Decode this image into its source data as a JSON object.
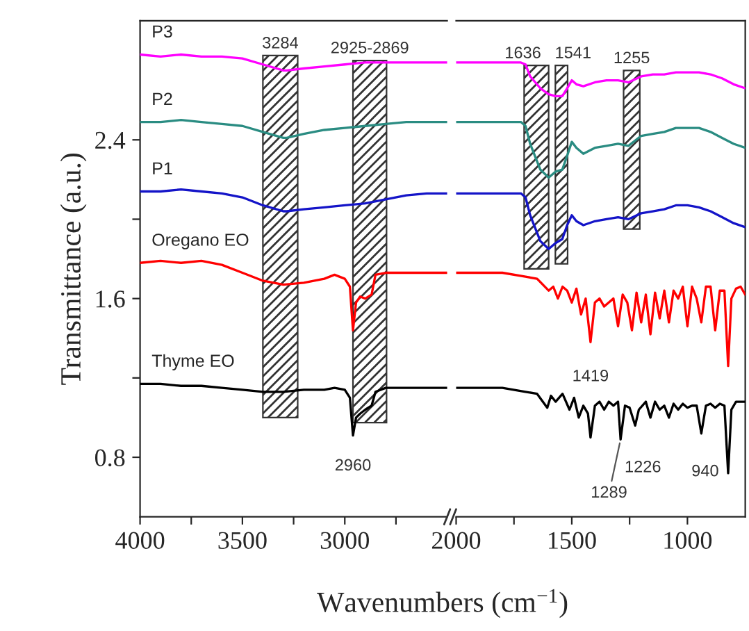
{
  "chart_data": [
    {
      "type": "line",
      "ylabel": "Transmittance (a.u.)",
      "xlabel": "Wavenumbers (cm$^{−1}$)",
      "xlim": [
        4000,
        2500
      ],
      "xticks": [
        4000,
        {
          "value": 3750,
          "label": null
        },
        3500,
        {
          "value": 3250,
          "label": null
        },
        3000,
        {
          "value": 2750,
          "label": null
        }
      ],
      "ylim": [
        0.5,
        3.0
      ],
      "yticks": [
        0.8,
        {
          "value": 1.2,
          "label": null
        },
        1.6,
        {
          "value": 2.0,
          "label": null
        },
        2.4
      ],
      "series": [
        {
          "name": "P3",
          "color": "#ff00ff",
          "x": [
            4000,
            3900,
            3800,
            3700,
            3600,
            3500,
            3400,
            3300,
            3284,
            3200,
            3100,
            3000,
            2900,
            2800,
            2700,
            2600,
            2500
          ],
          "values": [
            2.83,
            2.82,
            2.83,
            2.82,
            2.82,
            2.81,
            2.78,
            2.75,
            2.75,
            2.76,
            2.77,
            2.78,
            2.79,
            2.79,
            2.79,
            2.79,
            2.79
          ]
        },
        {
          "name": "P2",
          "color": "#2a8c82",
          "x": [
            4000,
            3900,
            3800,
            3700,
            3600,
            3500,
            3400,
            3300,
            3284,
            3200,
            3100,
            3000,
            2900,
            2800,
            2700,
            2600,
            2500
          ],
          "values": [
            2.49,
            2.49,
            2.5,
            2.49,
            2.48,
            2.47,
            2.44,
            2.41,
            2.41,
            2.43,
            2.45,
            2.46,
            2.47,
            2.48,
            2.49,
            2.49,
            2.49
          ]
        },
        {
          "name": "P1",
          "color": "#1414c8",
          "x": [
            4000,
            3900,
            3800,
            3700,
            3600,
            3500,
            3400,
            3300,
            3284,
            3200,
            3100,
            3000,
            2900,
            2800,
            2700,
            2600,
            2500
          ],
          "values": [
            2.14,
            2.14,
            2.15,
            2.14,
            2.13,
            2.11,
            2.07,
            2.04,
            2.04,
            2.05,
            2.06,
            2.07,
            2.08,
            2.1,
            2.12,
            2.13,
            2.13
          ]
        },
        {
          "name": "Oregano EO",
          "color": "#ff0000",
          "x": [
            4000,
            3900,
            3800,
            3700,
            3600,
            3500,
            3400,
            3300,
            3200,
            3100,
            3050,
            3000,
            2975,
            2960,
            2945,
            2925,
            2900,
            2869,
            2850,
            2800,
            2700,
            2600,
            2500
          ],
          "values": [
            1.78,
            1.79,
            1.78,
            1.79,
            1.77,
            1.73,
            1.69,
            1.67,
            1.68,
            1.7,
            1.72,
            1.7,
            1.66,
            1.44,
            1.58,
            1.61,
            1.6,
            1.62,
            1.72,
            1.73,
            1.73,
            1.73,
            1.73
          ]
        },
        {
          "name": "Thyme EO",
          "color": "#000000",
          "x": [
            4000,
            3900,
            3800,
            3700,
            3600,
            3500,
            3400,
            3300,
            3200,
            3100,
            3050,
            3000,
            2975,
            2960,
            2945,
            2925,
            2900,
            2869,
            2850,
            2800,
            2700,
            2600,
            2500
          ],
          "values": [
            1.17,
            1.17,
            1.16,
            1.16,
            1.15,
            1.14,
            1.13,
            1.13,
            1.14,
            1.14,
            1.15,
            1.14,
            1.1,
            0.91,
            1.0,
            1.02,
            1.04,
            1.06,
            1.13,
            1.15,
            1.15,
            1.15,
            1.15
          ]
        }
      ],
      "bands": [
        {
          "axis": "x",
          "from": 3400,
          "to": 3230,
          "label": "3284",
          "color": "#333333"
        },
        {
          "axis": "x",
          "from": 2960,
          "to": 2796,
          "label": "2925-2869",
          "color": "#333333"
        }
      ],
      "annotations": [
        {
          "text": "2960",
          "x": 2960,
          "y": 0.91
        }
      ]
    },
    {
      "type": "line",
      "tick_labels": "x",
      "xlim": [
        2000,
        750
      ],
      "xticks": [
        2000,
        {
          "value": 1750,
          "label": null
        },
        1500,
        {
          "value": 1250,
          "label": null
        },
        1000
      ],
      "ylim": [
        0.5,
        3.0
      ],
      "series": [
        {
          "color": "#ff00ff",
          "x": [
            2000,
            1900,
            1800,
            1720,
            1700,
            1680,
            1636,
            1600,
            1570,
            1541,
            1520,
            1500,
            1480,
            1450,
            1400,
            1350,
            1300,
            1255,
            1200,
            1150,
            1100,
            1050,
            1000,
            950,
            900,
            850,
            800,
            750
          ],
          "values": [
            2.79,
            2.79,
            2.79,
            2.79,
            2.78,
            2.72,
            2.66,
            2.63,
            2.62,
            2.62,
            2.66,
            2.7,
            2.68,
            2.67,
            2.69,
            2.7,
            2.7,
            2.69,
            2.72,
            2.73,
            2.73,
            2.74,
            2.74,
            2.74,
            2.73,
            2.71,
            2.68,
            2.66
          ]
        },
        {
          "color": "#2a8c82",
          "x": [
            2000,
            1900,
            1800,
            1720,
            1700,
            1680,
            1636,
            1600,
            1570,
            1541,
            1520,
            1500,
            1480,
            1450,
            1400,
            1350,
            1300,
            1255,
            1200,
            1150,
            1100,
            1050,
            1000,
            950,
            900,
            850,
            800,
            750
          ],
          "values": [
            2.49,
            2.49,
            2.49,
            2.49,
            2.47,
            2.38,
            2.25,
            2.21,
            2.24,
            2.25,
            2.32,
            2.39,
            2.36,
            2.33,
            2.36,
            2.37,
            2.38,
            2.37,
            2.42,
            2.43,
            2.44,
            2.46,
            2.46,
            2.46,
            2.44,
            2.41,
            2.38,
            2.36
          ]
        },
        {
          "color": "#1414c8",
          "x": [
            2000,
            1900,
            1800,
            1720,
            1700,
            1680,
            1636,
            1600,
            1570,
            1541,
            1520,
            1500,
            1480,
            1450,
            1400,
            1350,
            1300,
            1255,
            1200,
            1150,
            1100,
            1050,
            1000,
            950,
            900,
            850,
            800,
            750
          ],
          "values": [
            2.13,
            2.13,
            2.13,
            2.13,
            2.11,
            2.02,
            1.89,
            1.85,
            1.88,
            1.9,
            1.97,
            2.02,
            1.99,
            1.97,
            1.99,
            2.0,
            2.01,
            2.0,
            2.03,
            2.04,
            2.05,
            2.07,
            2.07,
            2.06,
            2.04,
            2.01,
            1.98,
            1.96
          ]
        },
        {
          "color": "#ff0000",
          "x": [
            2000,
            1800,
            1700,
            1650,
            1600,
            1580,
            1560,
            1540,
            1520,
            1500,
            1480,
            1460,
            1440,
            1419,
            1400,
            1380,
            1360,
            1340,
            1320,
            1300,
            1280,
            1260,
            1240,
            1220,
            1200,
            1180,
            1160,
            1140,
            1120,
            1100,
            1080,
            1060,
            1040,
            1020,
            1000,
            980,
            960,
            940,
            920,
            900,
            880,
            860,
            840,
            824,
            810,
            790,
            770,
            750
          ],
          "values": [
            1.73,
            1.73,
            1.71,
            1.7,
            1.64,
            1.66,
            1.6,
            1.66,
            1.64,
            1.58,
            1.65,
            1.52,
            1.6,
            1.38,
            1.58,
            1.6,
            1.56,
            1.58,
            1.6,
            1.46,
            1.62,
            1.58,
            1.44,
            1.63,
            1.48,
            1.62,
            1.42,
            1.63,
            1.5,
            1.64,
            1.48,
            1.64,
            1.6,
            1.66,
            1.46,
            1.66,
            1.6,
            1.48,
            1.66,
            1.66,
            1.44,
            1.64,
            1.64,
            1.26,
            1.6,
            1.65,
            1.66,
            1.62
          ]
        },
        {
          "color": "#000000",
          "x": [
            2000,
            1800,
            1700,
            1650,
            1606,
            1590,
            1570,
            1540,
            1510,
            1490,
            1470,
            1450,
            1430,
            1419,
            1400,
            1380,
            1360,
            1340,
            1320,
            1300,
            1289,
            1270,
            1250,
            1226,
            1210,
            1180,
            1160,
            1140,
            1120,
            1100,
            1080,
            1060,
            1040,
            1020,
            1000,
            980,
            960,
            940,
            920,
            900,
            880,
            860,
            840,
            824,
            810,
            790,
            770,
            750
          ],
          "values": [
            1.15,
            1.15,
            1.13,
            1.12,
            1.05,
            1.11,
            1.08,
            1.12,
            1.04,
            1.1,
            1.0,
            1.06,
            1.02,
            0.9,
            1.06,
            1.08,
            1.04,
            1.08,
            1.06,
            1.08,
            0.89,
            1.06,
            1.05,
            0.96,
            1.04,
            1.08,
            1.0,
            1.08,
            1.04,
            1.06,
            1.0,
            1.07,
            1.04,
            1.07,
            1.05,
            1.06,
            1.06,
            0.92,
            1.06,
            1.07,
            1.05,
            1.07,
            1.06,
            0.72,
            1.04,
            1.08,
            1.08,
            1.08
          ]
        }
      ],
      "bands": [
        {
          "axis": "x",
          "from": 1706,
          "to": 1600,
          "label": "1636",
          "color": "#333333"
        },
        {
          "axis": "x",
          "from": 1571,
          "to": 1518,
          "label": "1541",
          "color": "#333333"
        },
        {
          "axis": "x",
          "from": 1276,
          "to": 1206,
          "label": "1255",
          "color": "#333333"
        }
      ],
      "annotations": [
        {
          "text": "1419",
          "x": 1419,
          "y": 1.38
        },
        {
          "text": "1289",
          "x": 1289,
          "y": 0.89
        },
        {
          "text": "1226",
          "x": 1226,
          "y": 0.96
        },
        {
          "text": "940",
          "x": 940,
          "y": 0.92
        }
      ]
    }
  ]
}
